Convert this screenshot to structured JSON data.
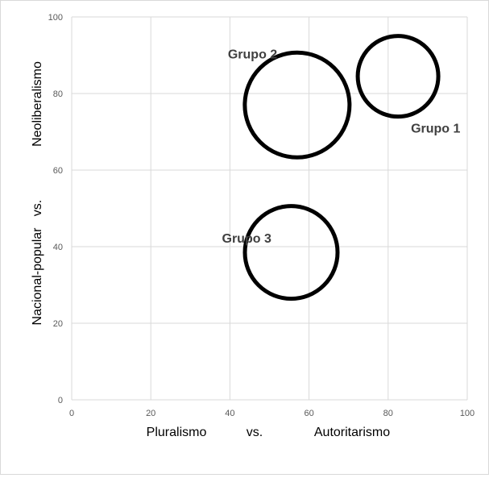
{
  "chart_data": {
    "type": "scatter",
    "xlim": [
      0,
      100
    ],
    "ylim": [
      0,
      100
    ],
    "xticks": [
      "0",
      "20",
      "40",
      "60",
      "80",
      "100"
    ],
    "yticks": [
      "0",
      "20",
      "40",
      "60",
      "80",
      "100"
    ],
    "grid": true,
    "x_axis_words": [
      "Pluralismo",
      "vs.",
      "Autoritarismo"
    ],
    "y_axis_words": [
      "Nacional-popular",
      "vs.",
      "Neoliberalismo"
    ],
    "series": [
      {
        "name": "Grupo 1",
        "x": 82.5,
        "y": 84.5,
        "size": 10
      },
      {
        "name": "Grupo 2",
        "x": 57.0,
        "y": 77.0,
        "size": 13
      },
      {
        "name": "Grupo 3",
        "x": 55.5,
        "y": 38.5,
        "size": 11.5
      }
    ],
    "colors": {
      "bubble_stroke": "#000000",
      "grid": "#d9d9d9",
      "tick_text": "#595959",
      "label_text": "#404040"
    }
  }
}
